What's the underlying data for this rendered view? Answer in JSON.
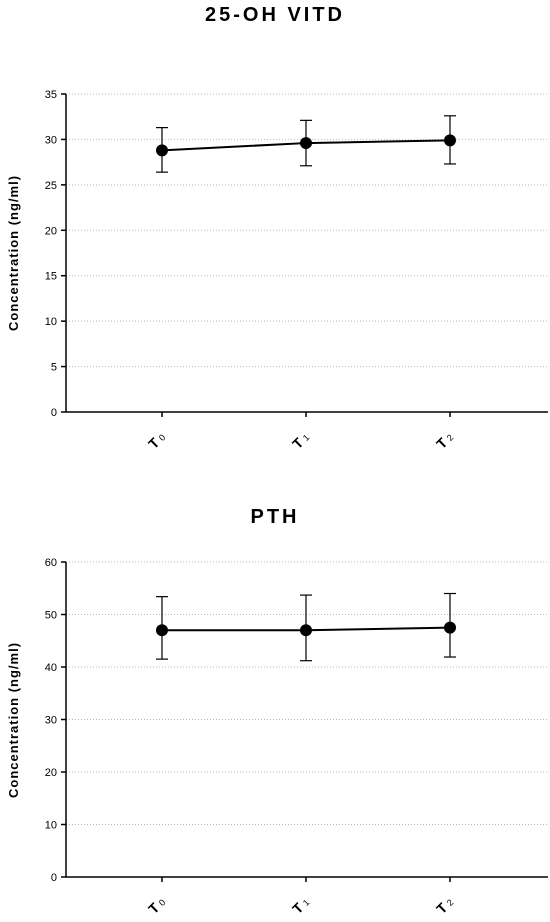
{
  "chart_data": [
    {
      "type": "line",
      "title": "25-OH VITD",
      "ylabel": "Concentration (ng/ml)",
      "xlabel": "",
      "categories": [
        {
          "main": "T",
          "sub": "0"
        },
        {
          "main": "T",
          "sub": "1"
        },
        {
          "main": "T",
          "sub": "2"
        }
      ],
      "series": [
        {
          "values": [
            28.8,
            29.6,
            29.9
          ],
          "error_low": [
            26.4,
            27.1,
            27.3
          ],
          "error_high": [
            31.3,
            32.1,
            32.6
          ]
        }
      ],
      "ylim": [
        0,
        35
      ],
      "yticks": [
        0,
        5,
        10,
        15,
        20,
        25,
        30,
        35
      ],
      "grid": "horizontal dotted"
    },
    {
      "type": "line",
      "title": "PTH",
      "ylabel": "Concentration (ng/ml)",
      "xlabel": "",
      "categories": [
        {
          "main": "T",
          "sub": "0"
        },
        {
          "main": "T",
          "sub": "1"
        },
        {
          "main": "T",
          "sub": "2"
        }
      ],
      "series": [
        {
          "values": [
            47.0,
            47.0,
            47.5
          ],
          "error_low": [
            41.5,
            41.2,
            41.9
          ],
          "error_high": [
            53.4,
            53.7,
            54.0
          ]
        }
      ],
      "ylim": [
        0,
        60
      ],
      "yticks": [
        0,
        10,
        20,
        30,
        40,
        50,
        60
      ],
      "grid": "horizontal dotted"
    }
  ],
  "colors": {
    "line": "#000000",
    "grid": "#bbbbbb",
    "marker": "#000000"
  }
}
